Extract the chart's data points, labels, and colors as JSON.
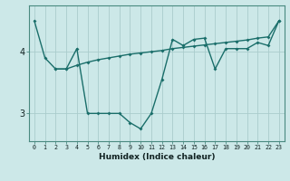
{
  "xlabel": "Humidex (Indice chaleur)",
  "background_color": "#cce8e8",
  "line_color": "#1a6e6a",
  "grid_color": "#aacccc",
  "line_a_x": [
    0,
    1,
    2,
    3,
    4,
    5,
    6,
    7,
    8,
    9,
    10,
    11,
    12,
    13,
    14,
    15,
    16,
    17,
    18,
    19,
    20,
    21,
    22,
    23
  ],
  "line_a_y": [
    4.5,
    3.9,
    3.72,
    3.72,
    3.78,
    3.83,
    3.87,
    3.9,
    3.93,
    3.96,
    3.98,
    4.0,
    4.02,
    4.05,
    4.07,
    4.09,
    4.11,
    4.13,
    4.15,
    4.17,
    4.19,
    4.22,
    4.24,
    4.5
  ],
  "line_b_x": [
    2,
    3,
    4,
    5,
    6,
    7,
    8,
    9,
    10,
    11,
    12,
    13,
    14,
    15,
    16,
    17,
    18,
    19,
    20,
    21,
    22,
    23
  ],
  "line_b_y": [
    3.72,
    3.72,
    4.05,
    3.0,
    3.0,
    3.0,
    3.0,
    2.85,
    2.75,
    3.0,
    3.55,
    4.2,
    4.1,
    4.2,
    4.22,
    3.72,
    4.05,
    4.05,
    4.05,
    4.15,
    4.1,
    4.5
  ],
  "ylim": [
    2.55,
    4.75
  ],
  "yticks": [
    3,
    4
  ],
  "xlim": [
    -0.5,
    23.5
  ]
}
